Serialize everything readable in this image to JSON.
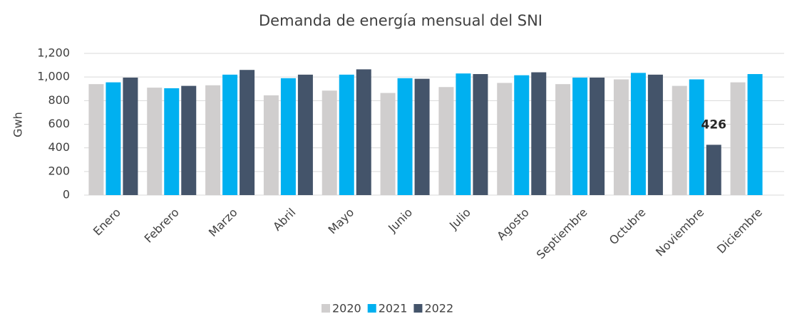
{
  "chart_data": {
    "type": "bar",
    "title": "Demanda de energía mensual del SNI",
    "ylabel": "Gwh",
    "categories": [
      "Enero",
      "Febrero",
      "Marzo",
      "Abril",
      "Mayo",
      "Junio",
      "Julio",
      "Agosto",
      "Septiembre",
      "Octubre",
      "Noviembre",
      "Diciembre"
    ],
    "series": [
      {
        "name": "2020",
        "color": "#d0cece",
        "values": [
          940,
          910,
          930,
          845,
          885,
          865,
          915,
          950,
          940,
          980,
          925,
          955
        ]
      },
      {
        "name": "2021",
        "color": "#00b0f0",
        "values": [
          955,
          905,
          1020,
          990,
          1020,
          990,
          1030,
          1015,
          995,
          1035,
          980,
          1025
        ]
      },
      {
        "name": "2022",
        "color": "#44546a",
        "values": [
          995,
          925,
          1060,
          1020,
          1065,
          985,
          1025,
          1040,
          995,
          1020,
          426,
          null
        ],
        "value_labels": [
          null,
          null,
          null,
          null,
          null,
          null,
          null,
          null,
          null,
          null,
          "426",
          null
        ]
      }
    ],
    "ylim": [
      0,
      1200
    ],
    "yticks": [
      0,
      200,
      400,
      600,
      800,
      {
        "value": 1000,
        "label": "1,000"
      },
      {
        "value": 1200,
        "label": "1,200"
      }
    ],
    "grid": true,
    "legend": "bottom"
  }
}
